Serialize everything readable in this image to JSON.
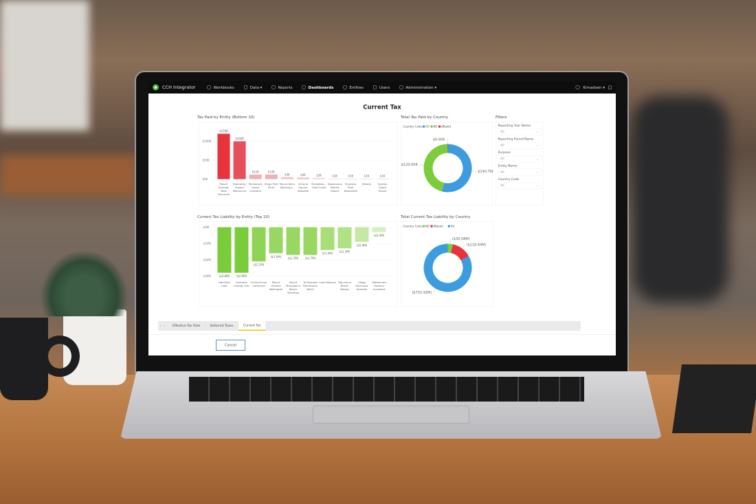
{
  "nav": {
    "brand": "CCH Integrator",
    "items": [
      {
        "label": "Workbooks",
        "icon": "book-icon"
      },
      {
        "label": "Data ▾",
        "icon": "database-icon"
      },
      {
        "label": "Reports",
        "icon": "report-icon"
      },
      {
        "label": "Dashboards",
        "icon": "dashboard-icon",
        "active": true
      },
      {
        "label": "Entities",
        "icon": "entities-icon"
      },
      {
        "label": "Users",
        "icon": "users-icon"
      },
      {
        "label": "Administration ▾",
        "icon": "gear-icon"
      }
    ],
    "user": "Kimadsen ▾"
  },
  "page_title": "Current Tax",
  "filters": {
    "title": "Filters",
    "items": [
      {
        "label": "Reporting Year Name",
        "value": "All"
      },
      {
        "label": "Reporting Period Name",
        "value": "All"
      },
      {
        "label": "Purpose",
        "value": "All"
      },
      {
        "label": "Entity Name",
        "value": "All"
      },
      {
        "label": "Country Code",
        "value": "All"
      }
    ]
  },
  "tabs": [
    {
      "label": "Effective Tax Rate"
    },
    {
      "label": "Deferred Taxes"
    },
    {
      "label": "Current Tax",
      "active": true
    }
  ],
  "cancel_label": "Cancel",
  "chart_data": [
    {
      "type": "bar",
      "title": "Tax Paid by Entity (Bottom 10)",
      "yticks": [
        "$0K",
        "$50K",
        "$100K"
      ],
      "ylim": [
        0,
        120
      ],
      "categories": [
        "Mount Taranaki New Plymouth",
        "Federation Square Melbourne",
        "Parliament House Canberra",
        "Kings Park Perth",
        "Mount Keira Wollongo...",
        "Victoria Square Adelaide",
        "Broadbea... Gold Coast",
        "Salamanca Market Hobart",
        "St James Park Newcastle",
        "(Blank)",
        "Sydney Opera House"
      ],
      "values": [
        120,
        100,
        12,
        12,
        5,
        4,
        3,
        1,
        1,
        1,
        1
      ],
      "labels": [
        "$120K",
        "$100K",
        "$12K",
        "$12K",
        "$5K",
        "$4K",
        "$3K",
        "$1K",
        "$1K",
        "$1K",
        "$1K"
      ],
      "colors": [
        "#e8323c",
        "#e5505a",
        "#f0b0b4",
        "#f0b0b4",
        "#f2c0c3",
        "#f2c0c3",
        "#f4cfd1",
        "#f6dcdd",
        "#f6dcdd",
        "#f6dcdd",
        "#f6dcdd"
      ]
    },
    {
      "type": "bar",
      "title": "Current Tax Liability by Entity (Top 10)",
      "yticks": [
        "$0M",
        "($1M)",
        "($2M)",
        "($3M)"
      ],
      "ylim": [
        -3,
        0
      ],
      "categories": [
        "Hamilton Lake",
        "Australia Foreign Sub",
        "Christchurch Cathedral",
        "Mount Victoria Wellington",
        "Mount Maunganui Beach Tauranga",
        "Te Manawa Palmerston North",
        "Lake Rotorua",
        "Tahunanui Beach Nelson",
        "Otago Peninsula Dunedin",
        "Waitemata Harbour Auckland"
      ],
      "values": [
        -2.8,
        -2.8,
        -2.1,
        -1.6,
        -1.7,
        -1.7,
        -1.4,
        -1.3,
        -0.9,
        -0.3
      ],
      "labels": [
        "($2.8M)",
        "($2.8M)",
        "($2.1M)",
        "($1.6M)",
        "($1.7M)",
        "($1.7M)",
        "($1.4M)",
        "($1.3M)",
        "($0.9M)",
        "($0.3M)"
      ],
      "colors": [
        "#7acc3a",
        "#7acc3a",
        "#8fd455",
        "#98d862",
        "#98d862",
        "#98d862",
        "#a8de78",
        "#b0e184",
        "#c4e9a2",
        "#d6f0c0"
      ]
    },
    {
      "type": "pie",
      "title": "Total Tax Paid by Country",
      "legend_title": "Country Code",
      "legend": "top-left",
      "slices": [
        {
          "name": "AU",
          "value": 140.76,
          "label": "$140.76K",
          "color": "#3d9be0"
        },
        {
          "name": "NZ",
          "value": 120.0,
          "label": "$120.00K",
          "color": "#7ccc3c"
        },
        {
          "name": "(Blank)",
          "value": 0.6,
          "label": "$0.60K",
          "color": "#e8323c"
        }
      ]
    },
    {
      "type": "pie",
      "title": "Total Current Tax Liability by Country",
      "legend_title": "Country Code",
      "legend": "top-left",
      "slices": [
        {
          "name": "NZ",
          "value": 30.08,
          "label": "($30.08M)",
          "color": "#7ccc3c"
        },
        {
          "name": "(Blank)",
          "value": 118.84,
          "label": "($118.84M)",
          "color": "#e8323c"
        },
        {
          "name": "AU",
          "value": 732.92,
          "label": "($732.92M)",
          "color": "#3d9be0"
        }
      ]
    }
  ]
}
